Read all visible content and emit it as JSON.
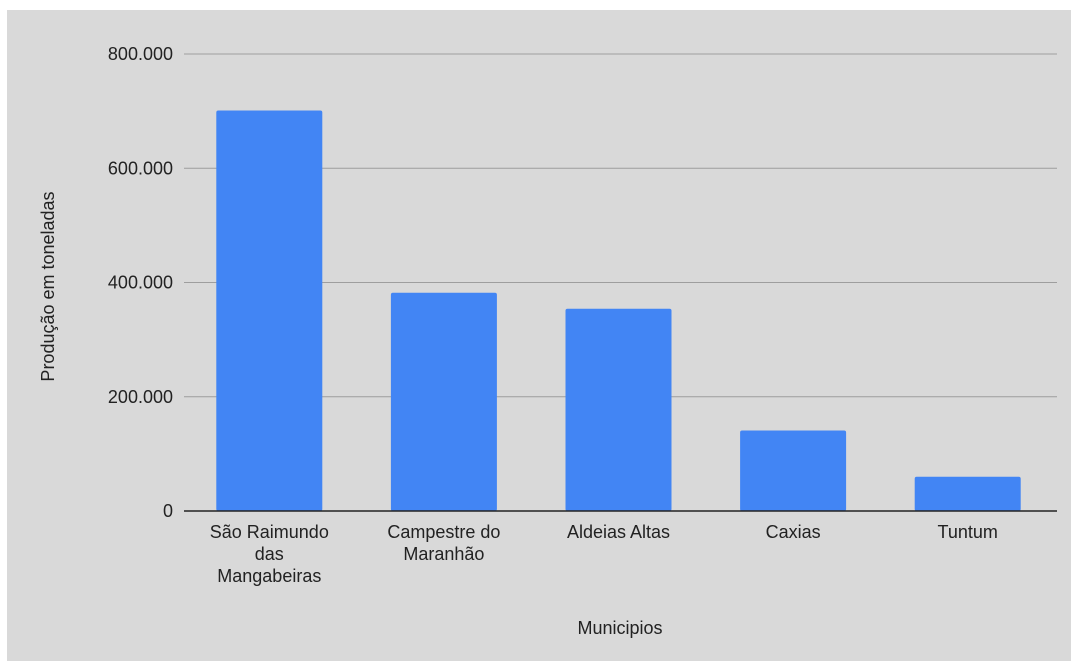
{
  "chart_data": {
    "type": "bar",
    "categories": [
      [
        "São Raimundo",
        "das",
        "Mangabeiras"
      ],
      [
        "Campestre do",
        "Maranhão"
      ],
      [
        "Aldeias Altas"
      ],
      [
        "Caxias"
      ],
      [
        "Tuntum"
      ]
    ],
    "values": [
      701000,
      382000,
      354000,
      141000,
      60000
    ],
    "xlabel": "Municipios",
    "ylabel": "Produção em toneladas",
    "ylim": [
      0,
      800000
    ],
    "yticks": [
      0,
      200000,
      400000,
      600000,
      800000
    ],
    "ytick_labels": [
      "0",
      "200.000",
      "400.000",
      "600.000",
      "800.000"
    ],
    "grid": true,
    "legend": "none",
    "colors": {
      "bar": "#4285f4",
      "background": "#d9d9d9",
      "grid": "#9e9e9e",
      "axis": "#222222"
    }
  }
}
